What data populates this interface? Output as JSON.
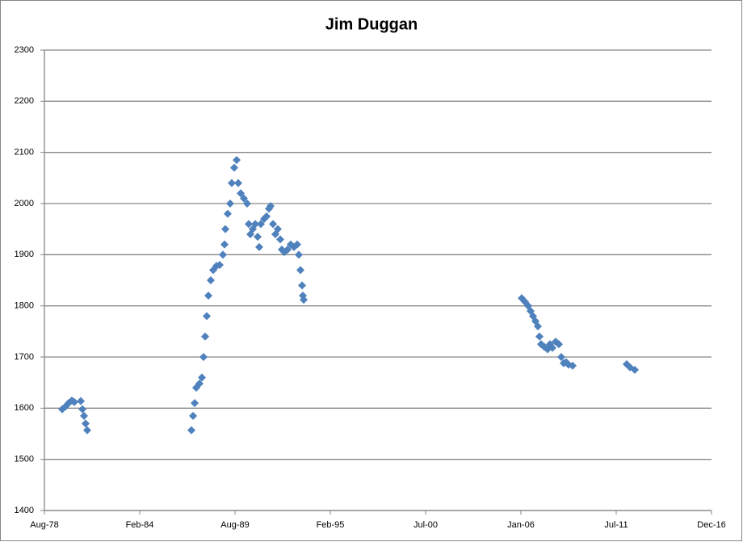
{
  "chart_data": {
    "type": "scatter",
    "title": "Jim Duggan",
    "color": "#4f81bd",
    "grid": true,
    "x": [
      28738,
      28806,
      28873,
      28941,
      28992,
      29128,
      29162,
      29196,
      29229,
      29263,
      31450,
      31484,
      31518,
      31551,
      31619,
      31670,
      31704,
      31738,
      31772,
      31806,
      31856,
      31907,
      31975,
      32043,
      32111,
      32145,
      32162,
      32212,
      32263,
      32297,
      32348,
      32399,
      32433,
      32484,
      32551,
      32619,
      32653,
      32687,
      32738,
      32789,
      32840,
      32873,
      32907,
      32975,
      33026,
      33077,
      33111,
      33162,
      33212,
      33263,
      33314,
      33348,
      33399,
      33467,
      33534,
      33602,
      33670,
      33704,
      33738,
      33772,
      33789,
      33806,
      38382,
      38450,
      38518,
      38568,
      38619,
      38670,
      38721,
      38755,
      38789,
      38856,
      38924,
      38975,
      39026,
      39094,
      39162,
      39212,
      39263,
      39314,
      39365,
      39450,
      40585,
      40653,
      40755
    ],
    "values": [
      1598,
      1603,
      1610,
      1615,
      1612,
      1614,
      1598,
      1585,
      1570,
      1557,
      1557,
      1585,
      1610,
      1640,
      1648,
      1660,
      1700,
      1740,
      1780,
      1820,
      1850,
      1870,
      1878,
      1880,
      1900,
      1920,
      1950,
      1980,
      2000,
      2040,
      2070,
      2085,
      2040,
      2020,
      2010,
      2000,
      1960,
      1940,
      1950,
      1960,
      1935,
      1915,
      1960,
      1970,
      1975,
      1990,
      1995,
      1960,
      1940,
      1950,
      1930,
      1910,
      1905,
      1910,
      1920,
      1915,
      1920,
      1900,
      1870,
      1840,
      1820,
      1812,
      1815,
      1808,
      1800,
      1790,
      1780,
      1770,
      1760,
      1740,
      1725,
      1720,
      1715,
      1725,
      1718,
      1730,
      1725,
      1700,
      1688,
      1690,
      1685,
      1683,
      1686,
      1680,
      1675
    ],
    "xlim": [
      28365,
      42365
    ],
    "xticks": [
      {
        "value": 28365,
        "label": "Aug-78"
      },
      {
        "value": 30365,
        "label": "Feb-84"
      },
      {
        "value": 32365,
        "label": "Aug-89"
      },
      {
        "value": 34365,
        "label": "Feb-95"
      },
      {
        "value": 36365,
        "label": "Jul-00"
      },
      {
        "value": 38365,
        "label": "Jan-06"
      },
      {
        "value": 40365,
        "label": "Jul-11"
      },
      {
        "value": 42365,
        "label": "Dec-16"
      }
    ],
    "ylim": [
      1400,
      2300
    ],
    "yticks": [
      1400,
      1500,
      1600,
      1700,
      1800,
      1900,
      2000,
      2100,
      2200,
      2300
    ]
  }
}
